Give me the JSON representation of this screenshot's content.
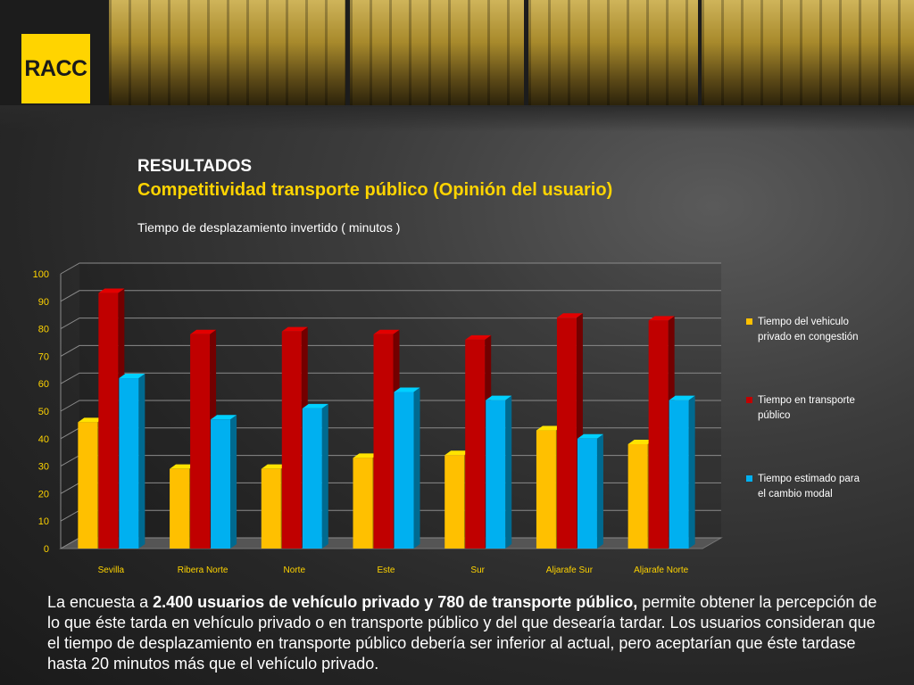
{
  "logo": {
    "text": "RACC"
  },
  "header": {
    "title": "RESULTADOS",
    "subtitle": "Competitividad transporte público (Opinión del usuario)"
  },
  "colors": {
    "accent": "#ffd400",
    "series_colors": [
      "#ffc000",
      "#c00000",
      "#00b0f0"
    ]
  },
  "chart_data": {
    "type": "bar",
    "title": "Tiempo de desplazamiento invertido ( minutos )",
    "xlabel": "",
    "ylabel": "",
    "ylim": [
      0,
      100
    ],
    "yticks": [
      0,
      10,
      20,
      30,
      40,
      50,
      60,
      70,
      80,
      90,
      100
    ],
    "grid": true,
    "legend_position": "right",
    "categories": [
      "Sevilla",
      "Ribera Norte",
      "Norte",
      "Este",
      "Sur",
      "Aljarafe Sur",
      "Aljarafe Norte"
    ],
    "series": [
      {
        "name": "Tiempo del vehiculo privado en congestión",
        "values": [
          46,
          29,
          29,
          33,
          34,
          43,
          38
        ]
      },
      {
        "name": "Tiempo en transporte público",
        "values": [
          93,
          78,
          79,
          78,
          76,
          84,
          83
        ]
      },
      {
        "name": "Tiempo estimado para el cambio modal",
        "values": [
          62,
          47,
          51,
          57,
          54,
          40,
          54
        ]
      }
    ]
  },
  "description": {
    "intro": "La encuesta a ",
    "bold": "2.400 usuarios de vehículo privado y 780 de transporte público,",
    "rest": " permite obtener la percepción de lo que éste tarda en vehículo privado o en transporte público y del que desearía tardar. Los usuarios consideran que el tiempo de desplazamiento en transporte público debería ser inferior al actual, pero aceptarían que éste tardase hasta 20 minutos más que el vehículo privado."
  }
}
